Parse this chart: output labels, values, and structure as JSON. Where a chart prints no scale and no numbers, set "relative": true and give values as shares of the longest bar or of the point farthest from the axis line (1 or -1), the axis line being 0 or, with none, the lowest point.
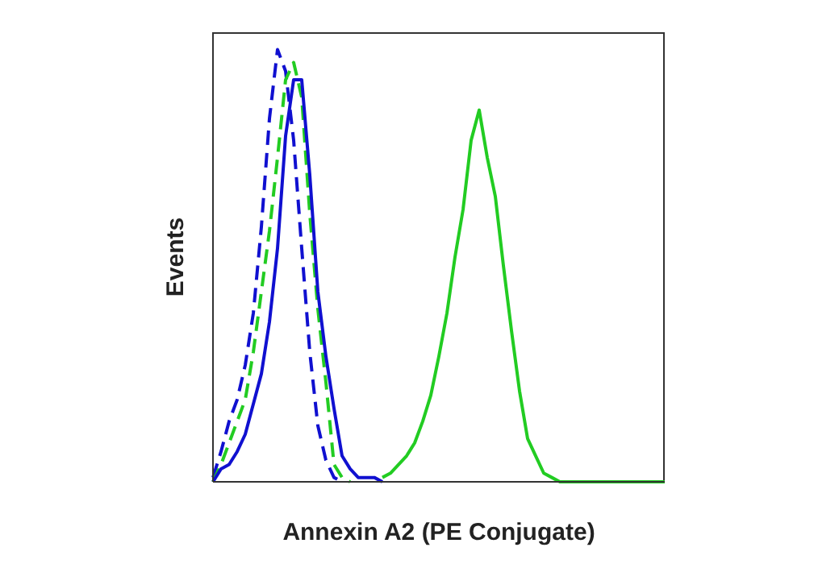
{
  "chart_data": {
    "type": "line",
    "xlabel": "Annexin A2 (PE Conjugate)",
    "ylabel": "Events",
    "relative": true,
    "tick_labels": false,
    "marker": "none",
    "grid": false,
    "categories": [
      null,
      null,
      null,
      null,
      null,
      null,
      null,
      null,
      null,
      null,
      null,
      null,
      null,
      null,
      null,
      null,
      null,
      null,
      null,
      null,
      null,
      null,
      null,
      null,
      null,
      null,
      null,
      null,
      null,
      null,
      null,
      null,
      null,
      null,
      null,
      null,
      null,
      null,
      null,
      null,
      null,
      null,
      null,
      null,
      null,
      null,
      null,
      null,
      null,
      null,
      null,
      null,
      null,
      null,
      null,
      null,
      null
    ],
    "series": [
      {
        "color": "#1010d0",
        "line_style": "dashed",
        "values": [
          0.01,
          0.07,
          0.14,
          0.19,
          0.27,
          0.39,
          0.59,
          0.84,
          1.0,
          0.95,
          0.79,
          0.54,
          0.3,
          0.13,
          0.05,
          0.01,
          0,
          null,
          null,
          null,
          null,
          null,
          null,
          null,
          null,
          null,
          null,
          null,
          null,
          null,
          null,
          null,
          null,
          null,
          null,
          null,
          null,
          null,
          null,
          null,
          null,
          null,
          null,
          null,
          null,
          null,
          null,
          null,
          null,
          null,
          null,
          null,
          null,
          null,
          null,
          null,
          null
        ]
      },
      {
        "color": "#22cc22",
        "line_style": "dashed",
        "values": [
          0,
          0.04,
          0.09,
          0.14,
          0.19,
          0.3,
          0.44,
          0.58,
          0.75,
          0.93,
          0.97,
          0.89,
          0.62,
          0.4,
          0.23,
          0.04,
          0.01,
          0,
          null,
          null,
          null,
          null,
          null,
          null,
          null,
          null,
          null,
          null,
          null,
          null,
          null,
          null,
          null,
          null,
          null,
          null,
          null,
          null,
          null,
          null,
          null,
          null,
          null,
          null,
          null,
          null,
          null,
          null,
          null,
          null,
          null,
          null,
          null,
          null,
          null,
          null,
          null
        ]
      },
      {
        "color": "#1010d0",
        "line_style": "solid",
        "values": [
          0,
          0.03,
          0.04,
          0.07,
          0.11,
          0.18,
          0.25,
          0.37,
          0.54,
          0.8,
          0.93,
          0.93,
          0.71,
          0.44,
          0.29,
          0.17,
          0.06,
          0.03,
          0.01,
          0.01,
          0.01,
          0,
          null,
          null,
          null,
          null,
          null,
          null,
          null,
          null,
          null,
          null,
          null,
          null,
          null,
          null,
          null,
          null,
          null,
          null,
          null,
          null,
          null,
          null,
          null,
          null,
          null,
          null,
          null,
          null,
          null,
          null,
          null,
          null,
          null,
          null,
          null
        ]
      },
      {
        "color": "#22cc22",
        "line_style": "solid",
        "values": [
          null,
          null,
          null,
          null,
          null,
          null,
          null,
          null,
          null,
          null,
          null,
          null,
          null,
          null,
          null,
          null,
          null,
          null,
          null,
          null,
          null,
          0.01,
          0.02,
          0.04,
          0.06,
          0.09,
          0.14,
          0.2,
          0.29,
          0.39,
          0.52,
          0.63,
          0.79,
          0.86,
          0.75,
          0.66,
          0.5,
          0.35,
          0.21,
          0.1,
          0.06,
          0.02,
          0.01,
          0,
          0,
          0,
          0,
          0,
          0,
          0,
          0,
          0,
          0,
          0,
          0,
          0,
          0
        ]
      }
    ]
  }
}
